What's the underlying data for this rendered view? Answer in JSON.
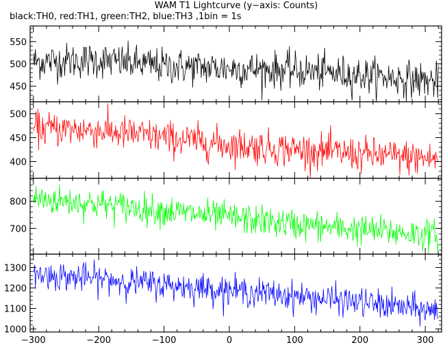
{
  "title": "WAM T1 Lightcurve (y−axis: Counts)",
  "subtitle": "black:TH0, red:TH1, green:TH2, blue:TH3 ,1bin = 1s",
  "chart_data": [
    {
      "type": "line",
      "series": [
        {
          "name": "TH0",
          "color": "#000000"
        }
      ],
      "x_range": [
        -305,
        325
      ],
      "ylim": [
        415,
        585
      ],
      "y_ticks": [
        450,
        500,
        550
      ],
      "trend": [
        [
          -300,
          505
        ],
        [
          -200,
          508
        ],
        [
          -100,
          495
        ],
        [
          0,
          490
        ],
        [
          100,
          485
        ],
        [
          200,
          475
        ],
        [
          320,
          460
        ]
      ],
      "noise": 20,
      "show_x_labels": false
    },
    {
      "type": "line",
      "series": [
        {
          "name": "TH1",
          "color": "#ff0000"
        }
      ],
      "x_range": [
        -305,
        325
      ],
      "ylim": [
        365,
        525
      ],
      "y_ticks": [
        400,
        450,
        500
      ],
      "trend": [
        [
          -300,
          470
        ],
        [
          -200,
          465
        ],
        [
          -100,
          450
        ],
        [
          0,
          435
        ],
        [
          100,
          425
        ],
        [
          200,
          415
        ],
        [
          320,
          405
        ]
      ],
      "noise": 18,
      "show_x_labels": false
    },
    {
      "type": "line",
      "series": [
        {
          "name": "TH2",
          "color": "#00ff00"
        }
      ],
      "x_range": [
        -305,
        325
      ],
      "ylim": [
        605,
        885
      ],
      "y_ticks": [
        700,
        800
      ],
      "trend": [
        [
          -300,
          810
        ],
        [
          -200,
          790
        ],
        [
          -100,
          765
        ],
        [
          0,
          740
        ],
        [
          100,
          715
        ],
        [
          200,
          695
        ],
        [
          320,
          675
        ]
      ],
      "noise": 28,
      "show_x_labels": false
    },
    {
      "type": "line",
      "series": [
        {
          "name": "TH3",
          "color": "#0000ff"
        }
      ],
      "x_range": [
        -305,
        325
      ],
      "ylim": [
        985,
        1365
      ],
      "y_ticks": [
        1000,
        1100,
        1200,
        1300
      ],
      "trend": [
        [
          -300,
          1265
        ],
        [
          -200,
          1245
        ],
        [
          -100,
          1215
        ],
        [
          0,
          1190
        ],
        [
          100,
          1160
        ],
        [
          200,
          1130
        ],
        [
          320,
          1085
        ]
      ],
      "noise": 35,
      "x_ticks": [
        -300,
        -200,
        -100,
        0,
        100,
        200,
        300
      ],
      "show_x_labels": true
    }
  ]
}
